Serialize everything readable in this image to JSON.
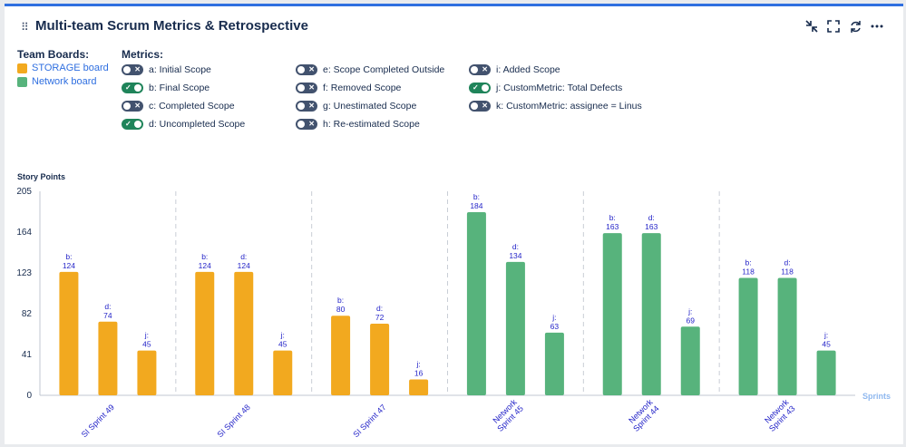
{
  "header": {
    "title": "Multi-team Scrum Metrics & Retrospective",
    "icons": [
      "collapse-icon",
      "fullscreen-icon",
      "refresh-icon",
      "more-icon"
    ]
  },
  "boards": {
    "heading": "Team Boards:",
    "items": [
      {
        "label": "STORAGE board",
        "color": "#f2a91f"
      },
      {
        "label": "Network board",
        "color": "#57b37c"
      }
    ]
  },
  "metrics": {
    "heading": "Metrics:",
    "items": [
      {
        "label": "a: Initial Scope",
        "enabled": false
      },
      {
        "label": "b: Final Scope",
        "enabled": true
      },
      {
        "label": "c: Completed Scope",
        "enabled": false
      },
      {
        "label": "d: Uncompleted Scope",
        "enabled": true
      },
      {
        "label": "e: Scope Completed Outside",
        "enabled": false
      },
      {
        "label": "f: Removed Scope",
        "enabled": false
      },
      {
        "label": "g: Unestimated Scope",
        "enabled": false
      },
      {
        "label": "h: Re-estimated Scope",
        "enabled": false
      },
      {
        "label": "i: Added Scope",
        "enabled": false
      },
      {
        "label": "j: CustomMetric: Total Defects",
        "enabled": true
      },
      {
        "label": "k: CustomMetric: assignee = Linus",
        "enabled": false
      }
    ]
  },
  "chart_data": {
    "type": "bar",
    "ylabel": "Story Points",
    "xlabel": "Sprints",
    "ylim": [
      0,
      205
    ],
    "yticks": [
      0,
      41,
      82,
      123,
      164,
      205
    ],
    "categories": [
      {
        "label": [
          "SI Sprint 49"
        ],
        "board": "STORAGE board"
      },
      {
        "label": [
          "SI Sprint 48"
        ],
        "board": "STORAGE board"
      },
      {
        "label": [
          "SI Sprint 47"
        ],
        "board": "STORAGE board"
      },
      {
        "label": [
          "Network",
          "Sprint 45"
        ],
        "board": "Network board"
      },
      {
        "label": [
          "Network",
          "Sprint 44"
        ],
        "board": "Network board"
      },
      {
        "label": [
          "Network",
          "Sprint 43"
        ],
        "board": "Network board"
      }
    ],
    "series": [
      {
        "name": "b",
        "values": [
          124,
          124,
          80,
          184,
          163,
          118
        ]
      },
      {
        "name": "d",
        "values": [
          74,
          124,
          72,
          134,
          163,
          118
        ]
      },
      {
        "name": "j",
        "values": [
          45,
          45,
          16,
          63,
          69,
          45
        ]
      }
    ],
    "colors": {
      "STORAGE board": "#f2a91f",
      "Network board": "#57b37c"
    },
    "grid": true
  }
}
